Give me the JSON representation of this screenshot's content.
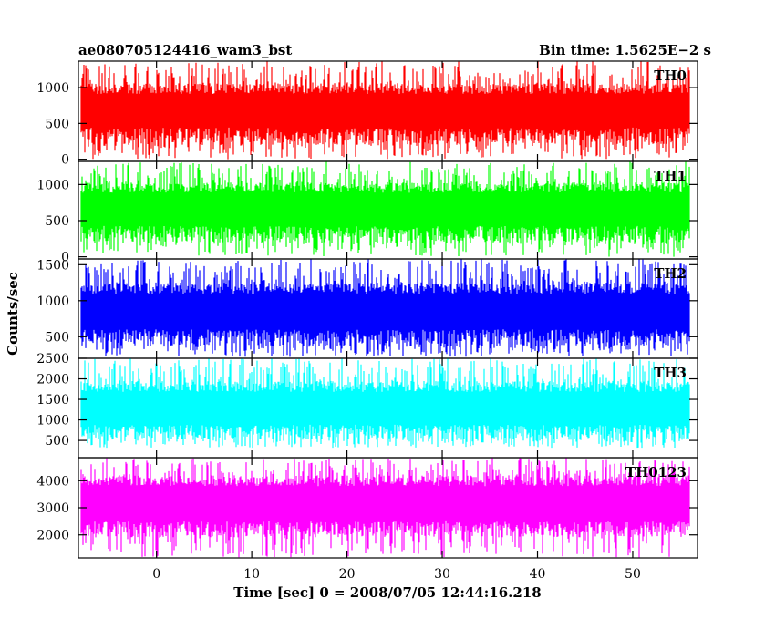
{
  "header": {
    "left_title": "ae080705124416_wam3_bst",
    "right_title": "Bin time: 1.5625E−2 s"
  },
  "chart_data": {
    "type": "line",
    "title": "ae080705124416_wam3_bst",
    "subtitle": "Bin time: 1.5625E−2 s",
    "xlabel": "Time [sec] 0 = 2008/07/05 12:44:16.218",
    "ylabel": "Counts/sec",
    "xlim": [
      -8.2,
      56.8
    ],
    "data_x_range": [
      -7.95,
      55.95
    ],
    "x_ticks": [
      0,
      10,
      20,
      30,
      40,
      50
    ],
    "x_tick_labels": [
      "0",
      "10",
      "20",
      "30",
      "40",
      "50"
    ],
    "grid": false,
    "panels": [
      {
        "name": "TH0",
        "color": "#ff0000",
        "ylim": [
          -30,
          1370
        ],
        "y_ticks": [
          0,
          500,
          1000
        ],
        "y_tick_labels": [
          "0",
          "500",
          "1000"
        ],
        "mean": 640,
        "band_low": 200,
        "band_high": 1060,
        "spike_low": 0,
        "spike_high": 1370
      },
      {
        "name": "TH1",
        "color": "#00ff00",
        "ylim": [
          -30,
          1320
        ],
        "y_ticks": [
          0,
          500,
          1000
        ],
        "y_tick_labels": [
          "0",
          "500",
          "1000"
        ],
        "mean": 620,
        "band_low": 190,
        "band_high": 1030,
        "spike_low": 0,
        "spike_high": 1320
      },
      {
        "name": "TH2",
        "color": "#0000ff",
        "ylim": [
          200,
          1580
        ],
        "y_ticks": [
          500,
          1000,
          1500
        ],
        "y_tick_labels": [
          "500",
          "1000",
          "1500"
        ],
        "mean": 800,
        "band_low": 360,
        "band_high": 1250,
        "spike_low": 220,
        "spike_high": 1580
      },
      {
        "name": "TH3",
        "color": "#00ffff",
        "ylim": [
          80,
          2500
        ],
        "y_ticks": [
          500,
          1000,
          1500,
          2000,
          2500
        ],
        "y_tick_labels": [
          "500",
          "1000",
          "1500",
          "2000",
          "2500"
        ],
        "mean": 1180,
        "band_low": 520,
        "band_high": 1950,
        "spike_low": 320,
        "spike_high": 2500
      },
      {
        "name": "TH0123",
        "color": "#ff00ff",
        "ylim": [
          1150,
          4850
        ],
        "y_ticks": [
          2000,
          3000,
          4000
        ],
        "y_tick_labels": [
          "2000",
          "3000",
          "4000"
        ],
        "mean": 3050,
        "band_low": 1900,
        "band_high": 4200,
        "spike_low": 1150,
        "spike_high": 4850
      }
    ]
  }
}
